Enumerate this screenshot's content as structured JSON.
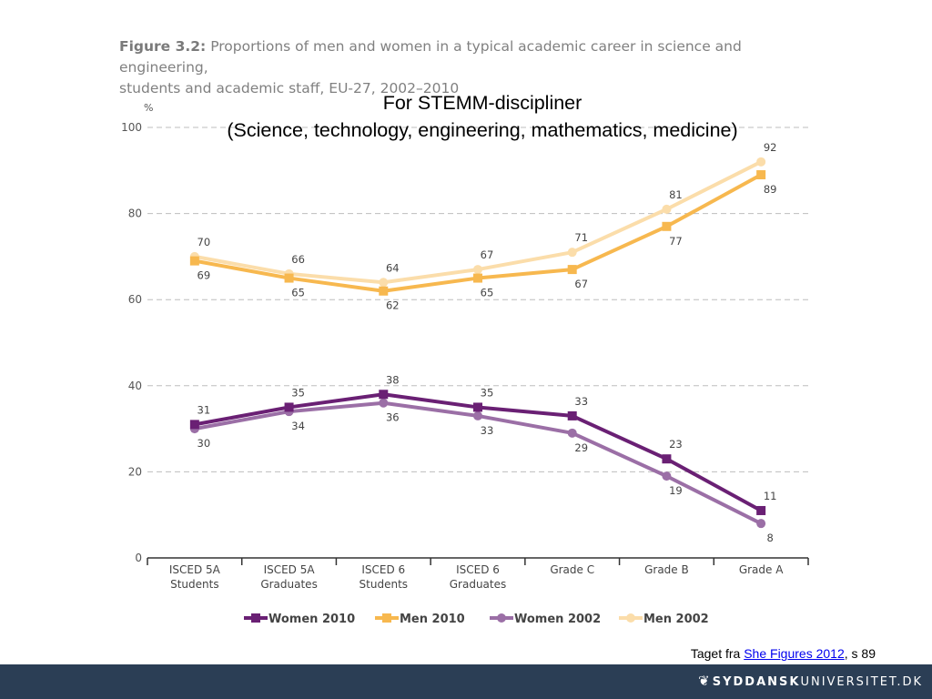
{
  "figure": {
    "label": "Figure 3.2:",
    "title_line1": "Proportions of men and women in a typical academic career in science and engineering,",
    "title_line2": "students and academic staff, EU-27, 2002–2010"
  },
  "overlay": {
    "line1": "For STEMM-discipliner",
    "line2": "(Science, technology, engineering, mathematics, medicine)"
  },
  "source": {
    "prefix": "Taget fra ",
    "link_text": "She Figures 2012",
    "suffix": ", s 89"
  },
  "footer": {
    "logo_bold": "SYDDANSK",
    "logo_rest": "UNIVERSITET.DK"
  },
  "chart_data": {
    "type": "line",
    "title": "",
    "xlabel": "",
    "ylabel": "%",
    "ylim": [
      0,
      100
    ],
    "yticks": [
      0,
      20,
      40,
      60,
      80,
      100
    ],
    "grid": "horizontal dashed",
    "legend_position": "bottom",
    "categories": [
      [
        "ISCED 5A",
        "Students"
      ],
      [
        "ISCED 5A",
        "Graduates"
      ],
      [
        "ISCED 6",
        "Students"
      ],
      [
        "ISCED 6",
        "Graduates"
      ],
      [
        "Grade C",
        ""
      ],
      [
        "Grade B",
        ""
      ],
      [
        "Grade A",
        ""
      ]
    ],
    "series": [
      {
        "name": "Women 2010",
        "color": "#6a2074",
        "marker": "square",
        "values": [
          31,
          35,
          38,
          35,
          33,
          23,
          11
        ],
        "labels_above": true
      },
      {
        "name": "Men 2010",
        "color": "#f7b84f",
        "marker": "square",
        "values": [
          69,
          65,
          62,
          65,
          67,
          77,
          89
        ],
        "labels_above": false
      },
      {
        "name": "Women 2002",
        "color": "#9b6fa6",
        "marker": "circle",
        "values": [
          30,
          34,
          36,
          33,
          29,
          19,
          8
        ],
        "labels_above": false
      },
      {
        "name": "Men 2002",
        "color": "#fbddaa",
        "marker": "circle",
        "values": [
          70,
          66,
          64,
          67,
          71,
          81,
          92
        ],
        "labels_above": true
      }
    ]
  }
}
